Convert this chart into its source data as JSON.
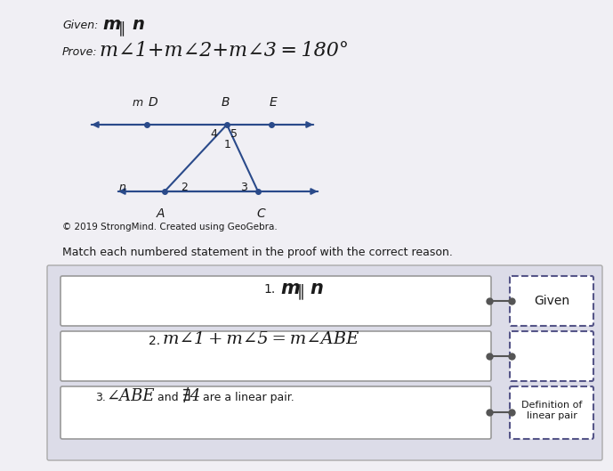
{
  "bg_color": "#f0eff4",
  "panel_color": "#e8e8ee",
  "box_color": "#ffffff",
  "dashed_box_color": "#ffffff",
  "line_color": "#2a4a8a",
  "text_color": "#1a1a1a",
  "given_text": "Given:",
  "given_formula": "m ∥ n",
  "prove_text": "Prove:",
  "prove_formula": "m∠1+m∠2+m∠3=180°",
  "copyright_text": "© 2019 StrongMind. Created using GeoGebra.",
  "match_text": "Match each numbered statement in the proof with the correct reason.",
  "stmt1": "1. m ∥ n",
  "stmt2": "2. m∠1+m∠5=m∠ABE",
  "stmt3": "3. ∠ABE and ∄4 are a linear pair.",
  "reason1": "Given",
  "reason3": "Definition of\nlinear pair",
  "connector_color": "#555555"
}
